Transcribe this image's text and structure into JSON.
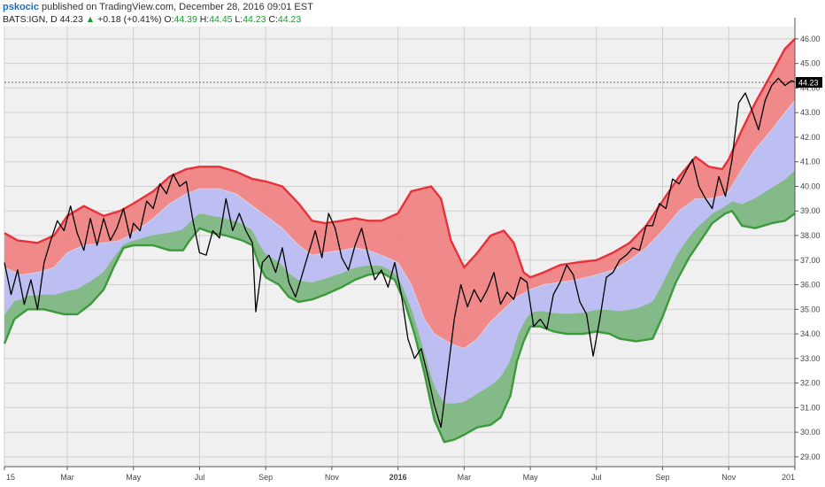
{
  "header": {
    "user": "pskocic",
    "published": "published on TradingView.com, December 28, 2016 09:01 EST",
    "symbol": "BATS:IGN, D",
    "last": "44.23",
    "change_arrow": "▲",
    "change": "+0.18 (+0.41%)",
    "open_label": "O:",
    "open": "44.39",
    "high_label": "H:",
    "high": "44.45",
    "low_label": "L:",
    "low": "44.23",
    "close_label": "C:",
    "close": "44.23"
  },
  "colors": {
    "background": "#f0f0f0",
    "red_band": "#f08080",
    "blue_band": "#b8bbf2",
    "green_band": "#7fba7f",
    "red_line": "#e8313a",
    "green_line": "#3c9a3c",
    "price_line": "#000000"
  },
  "chart_data": {
    "type": "line",
    "price_label": "44.23",
    "ylim": [
      28.6,
      46.5
    ],
    "y_ticks": [
      "29.00",
      "30.00",
      "31.00",
      "32.00",
      "33.00",
      "34.00",
      "35.00",
      "36.00",
      "37.00",
      "38.00",
      "39.00",
      "40.00",
      "41.00",
      "42.00",
      "43.00",
      "44.00",
      "45.00",
      "46.00"
    ],
    "x_ticks": [
      {
        "label": "15",
        "t": 0
      },
      {
        "label": "Mar",
        "t": 1.9
      },
      {
        "label": "May",
        "t": 3.9
      },
      {
        "label": "Jul",
        "t": 5.9
      },
      {
        "label": "Sep",
        "t": 7.9
      },
      {
        "label": "Nov",
        "t": 9.9
      },
      {
        "label": "2016",
        "t": 11.9
      },
      {
        "label": "Mar",
        "t": 13.9
      },
      {
        "label": "May",
        "t": 15.9
      },
      {
        "label": "Jul",
        "t": 17.9
      },
      {
        "label": "Sep",
        "t": 19.9
      },
      {
        "label": "Nov",
        "t": 21.9
      },
      {
        "label": "201",
        "t": 23.9
      }
    ],
    "xlim": [
      0,
      23.9
    ],
    "upper_band": [
      [
        0,
        38.1
      ],
      [
        0.4,
        37.8
      ],
      [
        1.0,
        37.7
      ],
      [
        1.5,
        38.0
      ],
      [
        1.9,
        38.8
      ],
      [
        2.4,
        39.2
      ],
      [
        3.0,
        38.8
      ],
      [
        3.5,
        39.0
      ],
      [
        3.9,
        39.3
      ],
      [
        4.5,
        39.8
      ],
      [
        5.0,
        40.4
      ],
      [
        5.5,
        40.7
      ],
      [
        5.9,
        40.8
      ],
      [
        6.5,
        40.8
      ],
      [
        7.0,
        40.6
      ],
      [
        7.5,
        40.3
      ],
      [
        7.9,
        40.2
      ],
      [
        8.4,
        40.0
      ],
      [
        8.9,
        39.3
      ],
      [
        9.3,
        38.6
      ],
      [
        9.7,
        38.5
      ],
      [
        10.2,
        38.6
      ],
      [
        10.6,
        38.7
      ],
      [
        11.0,
        38.6
      ],
      [
        11.4,
        38.6
      ],
      [
        11.9,
        38.9
      ],
      [
        12.3,
        39.8
      ],
      [
        12.9,
        40.0
      ],
      [
        13.2,
        39.5
      ],
      [
        13.5,
        37.8
      ],
      [
        13.9,
        36.7
      ],
      [
        14.3,
        37.3
      ],
      [
        14.7,
        38.0
      ],
      [
        15.1,
        38.2
      ],
      [
        15.4,
        37.7
      ],
      [
        15.7,
        36.5
      ],
      [
        15.9,
        36.3
      ],
      [
        16.3,
        36.5
      ],
      [
        16.8,
        36.8
      ],
      [
        17.3,
        36.9
      ],
      [
        17.9,
        37.0
      ],
      [
        18.4,
        37.3
      ],
      [
        18.9,
        37.7
      ],
      [
        19.4,
        38.4
      ],
      [
        19.9,
        39.4
      ],
      [
        20.4,
        40.4
      ],
      [
        20.9,
        41.2
      ],
      [
        21.3,
        40.8
      ],
      [
        21.7,
        40.7
      ],
      [
        21.9,
        41.1
      ],
      [
        22.3,
        42.3
      ],
      [
        22.7,
        43.4
      ],
      [
        23.2,
        44.6
      ],
      [
        23.6,
        45.6
      ],
      [
        23.9,
        46.0
      ]
    ],
    "middle_band": [
      [
        0,
        36.7
      ],
      [
        0.5,
        36.4
      ],
      [
        1.0,
        36.5
      ],
      [
        1.5,
        36.7
      ],
      [
        1.9,
        37.3
      ],
      [
        2.4,
        37.6
      ],
      [
        3.0,
        37.7
      ],
      [
        3.5,
        37.8
      ],
      [
        3.9,
        38.1
      ],
      [
        4.5,
        38.7
      ],
      [
        5.0,
        39.3
      ],
      [
        5.5,
        39.7
      ],
      [
        5.9,
        39.9
      ],
      [
        6.5,
        39.9
      ],
      [
        7.0,
        39.7
      ],
      [
        7.5,
        39.2
      ],
      [
        7.9,
        38.8
      ],
      [
        8.4,
        38.3
      ],
      [
        8.9,
        37.6
      ],
      [
        9.3,
        37.2
      ],
      [
        9.7,
        37.3
      ],
      [
        10.2,
        37.4
      ],
      [
        10.6,
        37.5
      ],
      [
        11.0,
        37.4
      ],
      [
        11.4,
        37.2
      ],
      [
        11.9,
        36.9
      ],
      [
        12.3,
        36.0
      ],
      [
        12.7,
        34.6
      ],
      [
        13.0,
        34.0
      ],
      [
        13.5,
        33.6
      ],
      [
        13.9,
        33.4
      ],
      [
        14.3,
        33.8
      ],
      [
        14.7,
        34.5
      ],
      [
        15.1,
        35.0
      ],
      [
        15.5,
        35.5
      ],
      [
        15.9,
        35.8
      ],
      [
        16.3,
        36.0
      ],
      [
        16.8,
        36.1
      ],
      [
        17.3,
        36.2
      ],
      [
        17.9,
        36.4
      ],
      [
        18.4,
        36.6
      ],
      [
        18.9,
        37.0
      ],
      [
        19.4,
        37.5
      ],
      [
        19.9,
        38.2
      ],
      [
        20.4,
        39.0
      ],
      [
        20.9,
        39.5
      ],
      [
        21.3,
        39.5
      ],
      [
        21.7,
        39.6
      ],
      [
        21.9,
        39.8
      ],
      [
        22.3,
        40.7
      ],
      [
        22.7,
        41.5
      ],
      [
        23.2,
        42.3
      ],
      [
        23.6,
        43.0
      ],
      [
        23.9,
        43.5
      ]
    ],
    "lower_band": [
      [
        0,
        33.6
      ],
      [
        0.3,
        34.6
      ],
      [
        0.7,
        35.0
      ],
      [
        1.2,
        35.0
      ],
      [
        1.8,
        34.8
      ],
      [
        2.2,
        34.8
      ],
      [
        2.6,
        35.2
      ],
      [
        3.0,
        35.8
      ],
      [
        3.3,
        36.7
      ],
      [
        3.6,
        37.5
      ],
      [
        3.9,
        37.6
      ],
      [
        4.5,
        37.6
      ],
      [
        5.0,
        37.4
      ],
      [
        5.4,
        37.4
      ],
      [
        5.6,
        37.8
      ],
      [
        5.9,
        38.3
      ],
      [
        6.3,
        38.1
      ],
      [
        6.7,
        38.0
      ],
      [
        7.2,
        37.8
      ],
      [
        7.5,
        37.6
      ],
      [
        7.7,
        36.8
      ],
      [
        7.9,
        36.3
      ],
      [
        8.3,
        36.0
      ],
      [
        8.6,
        35.5
      ],
      [
        8.9,
        35.3
      ],
      [
        9.3,
        35.4
      ],
      [
        9.7,
        35.6
      ],
      [
        10.2,
        35.9
      ],
      [
        10.6,
        36.2
      ],
      [
        11.0,
        36.4
      ],
      [
        11.4,
        36.5
      ],
      [
        11.8,
        36.2
      ],
      [
        12.1,
        35.3
      ],
      [
        12.4,
        34.0
      ],
      [
        12.7,
        32.4
      ],
      [
        13.0,
        30.5
      ],
      [
        13.3,
        29.6
      ],
      [
        13.6,
        29.7
      ],
      [
        13.9,
        29.9
      ],
      [
        14.3,
        30.2
      ],
      [
        14.7,
        30.3
      ],
      [
        15.0,
        30.6
      ],
      [
        15.3,
        31.5
      ],
      [
        15.5,
        32.9
      ],
      [
        15.7,
        33.7
      ],
      [
        15.9,
        34.3
      ],
      [
        16.2,
        34.3
      ],
      [
        16.6,
        34.1
      ],
      [
        17.0,
        34.0
      ],
      [
        17.5,
        34.0
      ],
      [
        17.9,
        34.1
      ],
      [
        18.3,
        34.0
      ],
      [
        18.6,
        33.8
      ],
      [
        19.1,
        33.7
      ],
      [
        19.6,
        33.8
      ],
      [
        19.9,
        34.7
      ],
      [
        20.3,
        36.1
      ],
      [
        20.7,
        37.1
      ],
      [
        21.1,
        37.9
      ],
      [
        21.4,
        38.5
      ],
      [
        21.8,
        38.9
      ],
      [
        22.0,
        39.0
      ],
      [
        22.3,
        38.4
      ],
      [
        22.7,
        38.3
      ],
      [
        23.2,
        38.5
      ],
      [
        23.6,
        38.6
      ],
      [
        23.9,
        38.9
      ]
    ],
    "price": [
      [
        0,
        36.9
      ],
      [
        0.2,
        35.6
      ],
      [
        0.4,
        36.6
      ],
      [
        0.6,
        35.2
      ],
      [
        0.8,
        36.2
      ],
      [
        1.0,
        35.0
      ],
      [
        1.2,
        36.9
      ],
      [
        1.4,
        37.8
      ],
      [
        1.6,
        38.6
      ],
      [
        1.8,
        38.2
      ],
      [
        2.0,
        39.2
      ],
      [
        2.2,
        38.1
      ],
      [
        2.4,
        37.4
      ],
      [
        2.6,
        38.7
      ],
      [
        2.8,
        37.6
      ],
      [
        3.0,
        38.7
      ],
      [
        3.2,
        37.8
      ],
      [
        3.4,
        38.3
      ],
      [
        3.6,
        39.1
      ],
      [
        3.8,
        37.9
      ],
      [
        3.9,
        38.5
      ],
      [
        4.1,
        38.2
      ],
      [
        4.3,
        39.4
      ],
      [
        4.5,
        39.1
      ],
      [
        4.7,
        40.1
      ],
      [
        4.9,
        39.7
      ],
      [
        5.1,
        40.5
      ],
      [
        5.3,
        40.0
      ],
      [
        5.5,
        40.2
      ],
      [
        5.7,
        38.6
      ],
      [
        5.9,
        37.3
      ],
      [
        6.1,
        37.2
      ],
      [
        6.3,
        38.2
      ],
      [
        6.5,
        37.9
      ],
      [
        6.7,
        39.5
      ],
      [
        6.9,
        38.2
      ],
      [
        7.1,
        38.9
      ],
      [
        7.3,
        38.2
      ],
      [
        7.5,
        37.7
      ],
      [
        7.6,
        34.9
      ],
      [
        7.8,
        36.9
      ],
      [
        8.0,
        37.2
      ],
      [
        8.2,
        36.5
      ],
      [
        8.4,
        37.5
      ],
      [
        8.6,
        36.1
      ],
      [
        8.8,
        35.5
      ],
      [
        9.0,
        36.4
      ],
      [
        9.2,
        37.3
      ],
      [
        9.4,
        38.2
      ],
      [
        9.6,
        37.1
      ],
      [
        9.8,
        38.9
      ],
      [
        10.0,
        38.3
      ],
      [
        10.2,
        37.1
      ],
      [
        10.4,
        36.6
      ],
      [
        10.6,
        37.6
      ],
      [
        10.8,
        38.3
      ],
      [
        11.0,
        37.2
      ],
      [
        11.2,
        36.2
      ],
      [
        11.4,
        36.6
      ],
      [
        11.6,
        35.9
      ],
      [
        11.8,
        36.9
      ],
      [
        12.0,
        35.6
      ],
      [
        12.2,
        33.8
      ],
      [
        12.4,
        33.0
      ],
      [
        12.6,
        33.4
      ],
      [
        12.8,
        32.3
      ],
      [
        13.0,
        31.1
      ],
      [
        13.2,
        30.2
      ],
      [
        13.4,
        32.4
      ],
      [
        13.6,
        34.6
      ],
      [
        13.8,
        36.0
      ],
      [
        14.0,
        35.1
      ],
      [
        14.2,
        35.8
      ],
      [
        14.4,
        35.3
      ],
      [
        14.6,
        35.8
      ],
      [
        14.8,
        36.5
      ],
      [
        15.0,
        35.2
      ],
      [
        15.2,
        35.7
      ],
      [
        15.4,
        35.4
      ],
      [
        15.6,
        36.3
      ],
      [
        15.8,
        36.1
      ],
      [
        16.0,
        34.3
      ],
      [
        16.2,
        34.6
      ],
      [
        16.4,
        34.2
      ],
      [
        16.6,
        35.6
      ],
      [
        16.8,
        36.1
      ],
      [
        17.0,
        36.8
      ],
      [
        17.2,
        36.4
      ],
      [
        17.4,
        35.3
      ],
      [
        17.6,
        34.8
      ],
      [
        17.8,
        33.1
      ],
      [
        18.0,
        34.6
      ],
      [
        18.2,
        36.3
      ],
      [
        18.4,
        36.5
      ],
      [
        18.6,
        37.0
      ],
      [
        18.8,
        37.2
      ],
      [
        19.0,
        37.5
      ],
      [
        19.2,
        37.4
      ],
      [
        19.4,
        38.4
      ],
      [
        19.6,
        38.4
      ],
      [
        19.8,
        39.3
      ],
      [
        20.0,
        39.1
      ],
      [
        20.2,
        40.3
      ],
      [
        20.4,
        40.1
      ],
      [
        20.6,
        40.6
      ],
      [
        20.8,
        41.1
      ],
      [
        21.0,
        40.0
      ],
      [
        21.2,
        39.5
      ],
      [
        21.4,
        39.1
      ],
      [
        21.6,
        40.4
      ],
      [
        21.8,
        39.6
      ],
      [
        22.0,
        41.1
      ],
      [
        22.2,
        43.4
      ],
      [
        22.4,
        43.8
      ],
      [
        22.6,
        43.1
      ],
      [
        22.8,
        42.3
      ],
      [
        23.0,
        43.5
      ],
      [
        23.2,
        44.1
      ],
      [
        23.4,
        44.4
      ],
      [
        23.6,
        44.1
      ],
      [
        23.8,
        44.3
      ],
      [
        23.9,
        44.23
      ]
    ]
  }
}
